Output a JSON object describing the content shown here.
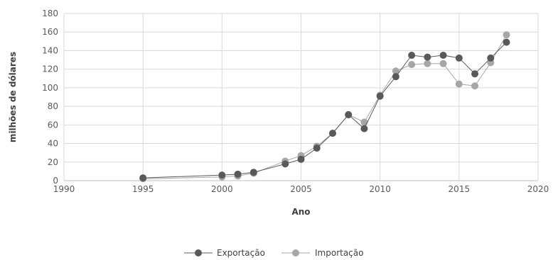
{
  "chart_data": {
    "type": "line",
    "xlabel": "Ano",
    "ylabel": "milhões de dólares",
    "xlim": [
      1990,
      2020
    ],
    "ylim": [
      0,
      180
    ],
    "x_ticks": [
      "1990",
      "1995",
      "2000",
      "2005",
      "2010",
      "2015",
      "2020"
    ],
    "y_ticks": [
      "0",
      "20",
      "40",
      "60",
      "80",
      "100",
      "120",
      "140",
      "160",
      "180"
    ],
    "grid": true,
    "legend_position": "bottom",
    "series": [
      {
        "name": "Exportação",
        "color": "#595959",
        "points": [
          [
            1995,
            3
          ],
          [
            2000,
            6
          ],
          [
            2001,
            7
          ],
          [
            2002,
            9
          ],
          [
            2004,
            18
          ],
          [
            2005,
            23
          ],
          [
            2006,
            35
          ],
          [
            2007,
            51
          ],
          [
            2008,
            71
          ],
          [
            2009,
            56
          ],
          [
            2010,
            91
          ],
          [
            2011,
            112
          ],
          [
            2012,
            135
          ],
          [
            2013,
            133
          ],
          [
            2014,
            135
          ],
          [
            2015,
            132
          ],
          [
            2016,
            115
          ],
          [
            2017,
            132
          ],
          [
            2018,
            149
          ]
        ]
      },
      {
        "name": "Importação",
        "color": "#a6a6a6",
        "points": [
          [
            1995,
            2
          ],
          [
            2000,
            4
          ],
          [
            2001,
            5
          ],
          [
            2002,
            8
          ],
          [
            2004,
            21
          ],
          [
            2005,
            27
          ],
          [
            2006,
            37
          ],
          [
            2007,
            51
          ],
          [
            2008,
            71
          ],
          [
            2009,
            63
          ],
          [
            2010,
            92
          ],
          [
            2011,
            118
          ],
          [
            2012,
            125
          ],
          [
            2013,
            126
          ],
          [
            2014,
            126
          ],
          [
            2015,
            104
          ],
          [
            2016,
            102
          ],
          [
            2017,
            127
          ],
          [
            2018,
            157
          ]
        ]
      }
    ]
  }
}
